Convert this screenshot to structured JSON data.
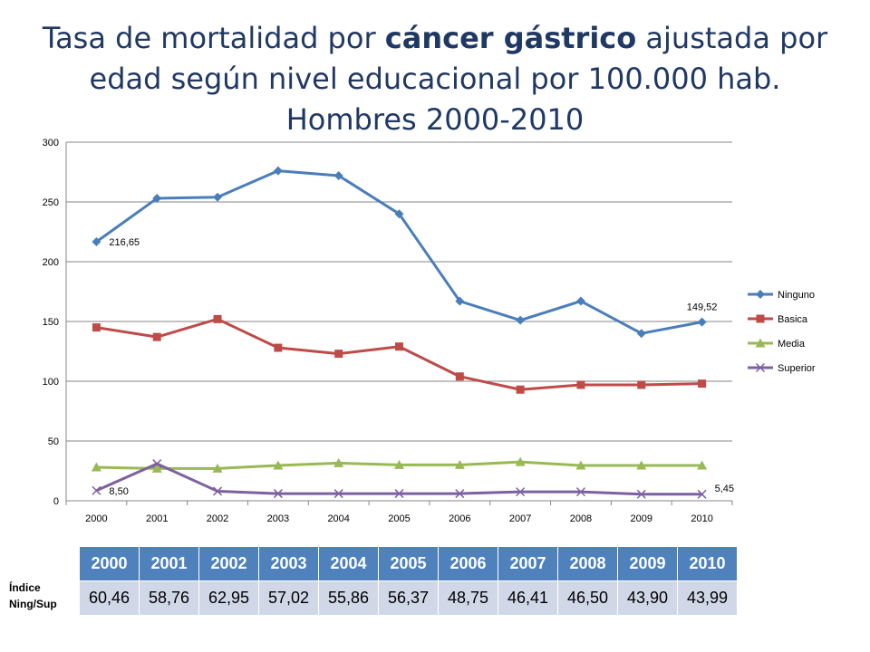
{
  "title": {
    "line1_pre": "Tasa de mortalidad por ",
    "line1_bold": "cáncer gástrico",
    "line1_post": " ajustada por",
    "line2": "edad según nivel educacional por 100.000 hab.",
    "line3": "Hombres 2000-2010"
  },
  "chart_data": {
    "type": "line",
    "title": "Tasa de mortalidad por cáncer gástrico ajustada por edad según nivel educacional por 100.000 hab. Hombres 2000-2010",
    "categories": [
      "2000",
      "2001",
      "2002",
      "2003",
      "2004",
      "2005",
      "2006",
      "2007",
      "2008",
      "2009",
      "2010"
    ],
    "ylim": [
      0,
      300
    ],
    "yticks": [
      0,
      50,
      100,
      150,
      200,
      250,
      300
    ],
    "grid": true,
    "legend_position": "right",
    "series": [
      {
        "name": "Ninguno",
        "color": "#4a7ebb",
        "marker": "diamond",
        "values": [
          216.65,
          253,
          254,
          276,
          272,
          240,
          167,
          151,
          167,
          140,
          149.52
        ]
      },
      {
        "name": "Basica",
        "color": "#be4b48",
        "marker": "square",
        "values": [
          145,
          137,
          152,
          128,
          123,
          129,
          104,
          93,
          97,
          97,
          98
        ]
      },
      {
        "name": "Media",
        "color": "#98b954",
        "marker": "triangle",
        "values": [
          28,
          27,
          27,
          29.5,
          31.5,
          30,
          30,
          32.5,
          29.5,
          29.5,
          29.5
        ]
      },
      {
        "name": "Superior",
        "color": "#7d60a0",
        "marker": "x",
        "values": [
          8.5,
          31,
          8,
          6,
          6,
          6,
          6,
          7.5,
          7.5,
          5.5,
          5.45
        ]
      }
    ],
    "data_labels": [
      {
        "series": 0,
        "index": 0,
        "text": "216,65"
      },
      {
        "series": 0,
        "index": 10,
        "text": "149,52"
      },
      {
        "series": 3,
        "index": 0,
        "text": "8,50"
      },
      {
        "series": 3,
        "index": 10,
        "text": "5,45"
      }
    ]
  },
  "index_table": {
    "label_line1": "Índice",
    "label_line2": "Ning/Sup",
    "years": [
      "2000",
      "2001",
      "2002",
      "2003",
      "2004",
      "2005",
      "2006",
      "2007",
      "2008",
      "2009",
      "2010"
    ],
    "values": [
      "60,46",
      "58,76",
      "62,95",
      "57,02",
      "55,86",
      "56,37",
      "48,75",
      "46,41",
      "46,50",
      "43,90",
      "43,99"
    ]
  }
}
